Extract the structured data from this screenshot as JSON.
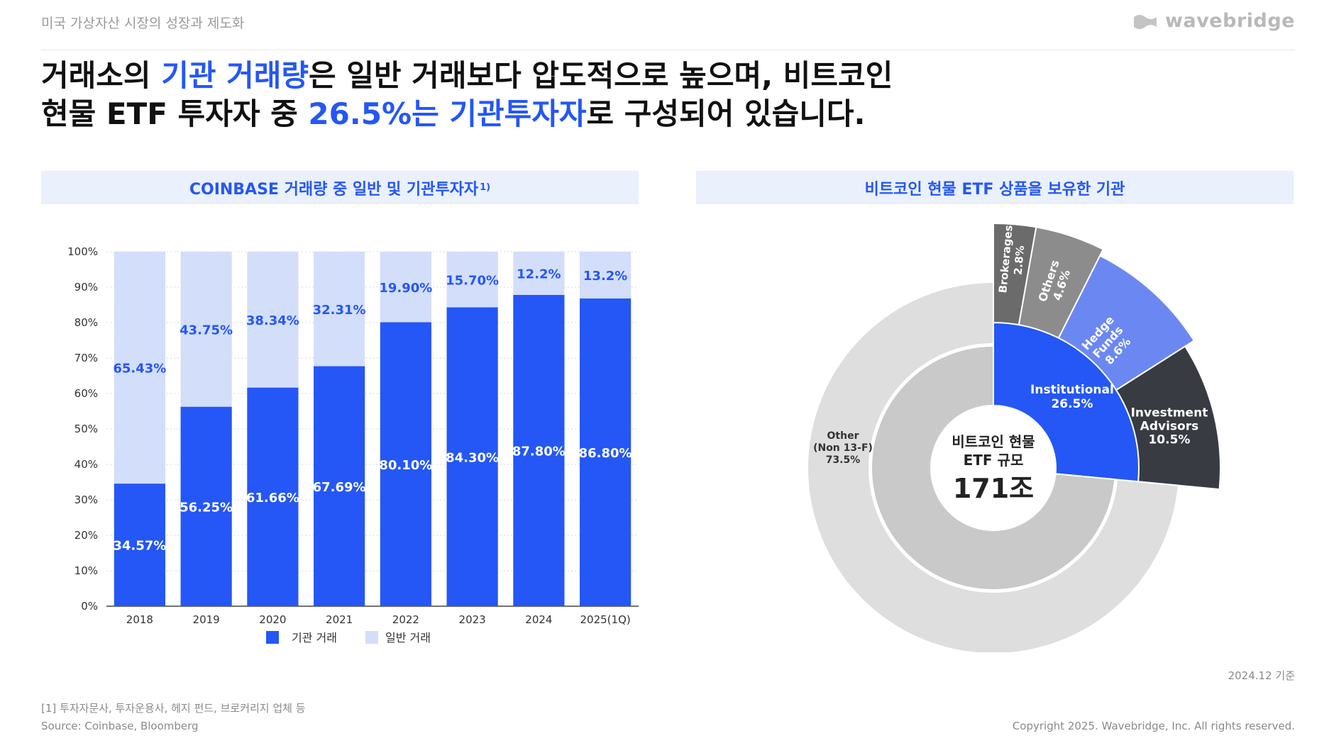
{
  "header": {
    "subtitle": "미국 가상자산 시장의 성장과 제도화",
    "logo_text": "wavebridge"
  },
  "headline": {
    "line1": [
      "거래소의 ",
      "기관 거래량",
      "은 일반 거래보다 압도적으로 높으며, 비트코인"
    ],
    "line2": [
      "현물 ETF 투자자 중 ",
      "26.5%는 기관투자자",
      "로 구성되어 있습니다."
    ]
  },
  "left_panel": {
    "title": "COINBASE 거래량 중 일반 및 기관투자자",
    "title_sup": "1)"
  },
  "right_panel": {
    "title": "비트코인 현물 ETF 상품을 보유한 기관"
  },
  "colors": {
    "institutional": "#2457f5",
    "retail": "#d3defa",
    "accent": "#2457f5"
  },
  "chart_data": [
    {
      "type": "bar",
      "stacked": true,
      "categories": [
        "2018",
        "2019",
        "2020",
        "2021",
        "2022",
        "2023",
        "2024",
        "2025(1Q)"
      ],
      "series": [
        {
          "name": "기관 거래",
          "values": [
            34.57,
            56.25,
            61.66,
            67.69,
            80.1,
            84.3,
            87.8,
            86.8
          ],
          "labels": [
            "34.57%",
            "56.25%",
            "61.66%",
            "67.69%",
            "80.10%",
            "84.30%",
            "87.80%",
            "86.80%"
          ]
        },
        {
          "name": "일반 거래",
          "values": [
            65.43,
            43.75,
            38.34,
            32.31,
            19.9,
            15.7,
            12.2,
            13.2
          ],
          "labels": [
            "65.43%",
            "43.75%",
            "38.34%",
            "32.31%",
            "19.90%",
            "15.70%",
            "12.2%",
            "13.2%"
          ]
        }
      ],
      "yticks": [
        "0%",
        "10%",
        "20%",
        "30%",
        "40%",
        "50%",
        "60%",
        "70%",
        "80%",
        "90%",
        "100%"
      ],
      "ylim": [
        0,
        100
      ],
      "legend": "bottom",
      "grid": true
    },
    {
      "type": "pie",
      "subtype": "sunburst",
      "center_label": [
        "비트코인 현물",
        "ETF 규모"
      ],
      "center_value": "171조",
      "slices": [
        {
          "name": "Institutional",
          "value": 26.5,
          "label": [
            "Institutional",
            "26.5%"
          ],
          "color": "#2457f5"
        },
        {
          "name": "Other (Non 13-F)",
          "value": 73.5,
          "label": [
            "Other",
            "(Non 13-F)",
            "73.5%"
          ],
          "color": "#c9c9c9"
        }
      ],
      "outer_slices": [
        {
          "name": "Brokerages",
          "value": 2.8,
          "label": [
            "Brokerages",
            "2.8%"
          ],
          "color": "#6b6b6b"
        },
        {
          "name": "Others",
          "value": 4.6,
          "label": [
            "Others",
            "4.6%"
          ],
          "color": "#8c8c8c"
        },
        {
          "name": "Hedge Funds",
          "value": 8.6,
          "label": [
            "Hedge",
            "Funds",
            "8.6%"
          ],
          "color": "#6b88f2"
        },
        {
          "name": "Investment Advisors",
          "value": 10.5,
          "label": [
            "Investment",
            "Advisors",
            "10.5%"
          ],
          "color": "#383b42"
        },
        {
          "name": "Other",
          "value": 73.5,
          "label": [],
          "color": "#dedede"
        }
      ]
    }
  ],
  "date_note": "2024.12 기준",
  "footnote": "[1] 투자자문사, 투자운용사, 헤지 펀드, 브로커리지 업체 등",
  "source": "Source: Coinbase, Bloomberg",
  "copyright": "Copyright 2025. Wavebridge, Inc. All rights reserved."
}
